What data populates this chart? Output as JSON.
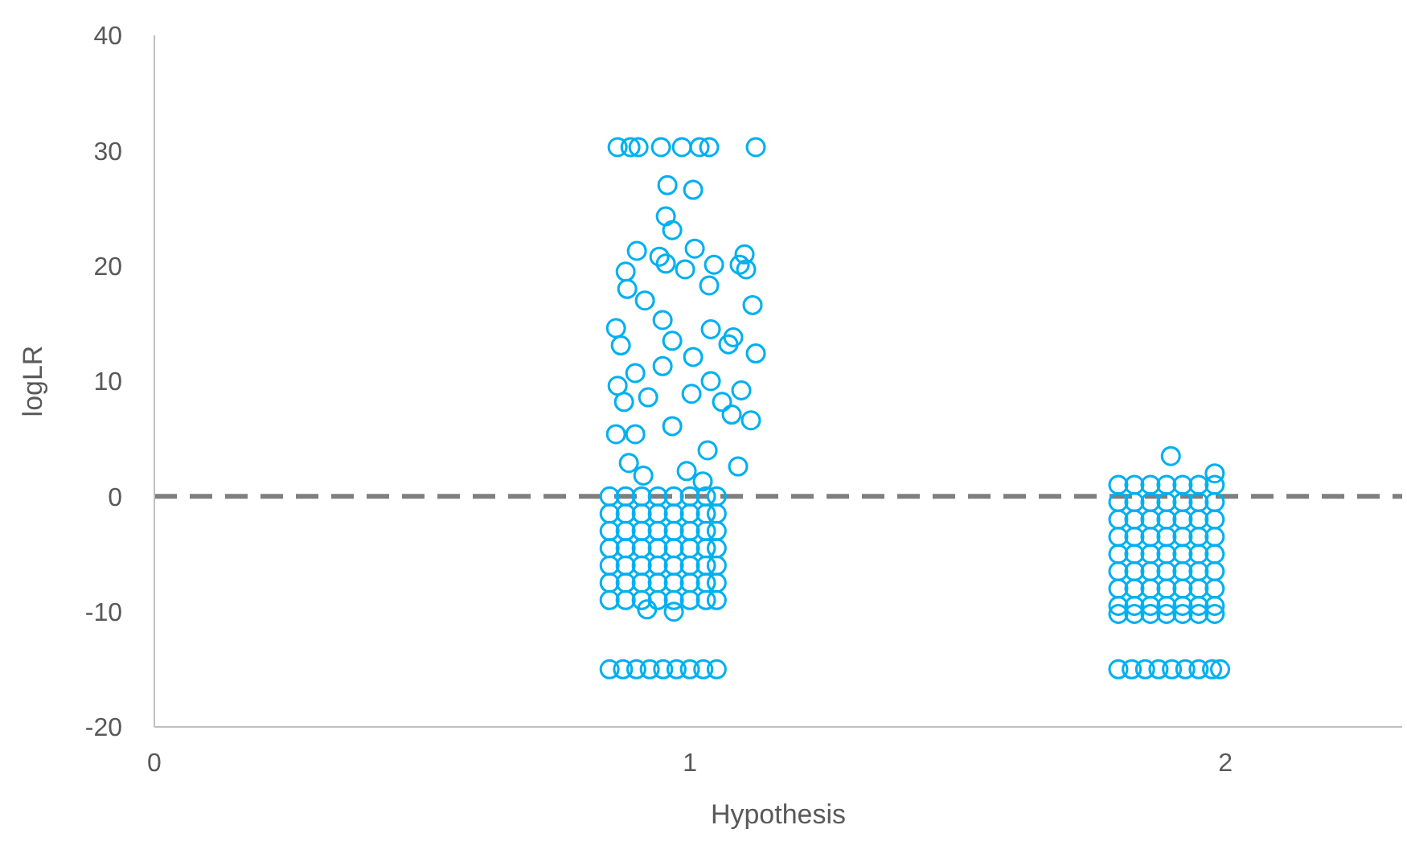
{
  "chart_data": {
    "type": "scatter",
    "xlabel": "Hypothesis",
    "ylabel": "logLR",
    "xlim": [
      0,
      2.33
    ],
    "xticks": [
      0,
      1,
      2
    ],
    "ylim": [
      -20,
      40
    ],
    "yticks": [
      -20,
      -10,
      0,
      10,
      20,
      30,
      40
    ],
    "grid": false,
    "legend": false,
    "marker": "circle",
    "color": "#00b0f0",
    "ref_lines": [
      {
        "axis": "y",
        "value": 0,
        "color": "#7f7f7f",
        "line_style": "dashed"
      }
    ],
    "x": [
      0.865,
      0.889,
      0.904,
      0.946,
      0.985,
      1.018,
      1.036,
      1.123,
      0.958,
      1.006,
      0.955,
      0.967,
      0.901,
      0.943,
      1.009,
      1.102,
      1.045,
      1.093,
      0.88,
      0.955,
      0.991,
      1.105,
      0.883,
      0.916,
      1.036,
      1.117,
      0.862,
      0.949,
      1.039,
      1.081,
      0.967,
      0.871,
      1.006,
      1.072,
      1.123,
      0.865,
      0.898,
      0.949,
      1.039,
      1.096,
      0.877,
      0.922,
      1.003,
      1.06,
      1.114,
      0.862,
      0.898,
      0.967,
      1.078,
      1.033,
      0.886,
      0.994,
      1.09,
      0.913,
      1.024,
      0.85,
      0.88,
      0.91,
      0.94,
      0.97,
      1.0,
      1.03,
      1.05,
      0.85,
      0.88,
      0.91,
      0.94,
      0.97,
      1.0,
      1.03,
      1.05,
      0.85,
      0.88,
      0.91,
      0.94,
      0.97,
      1.0,
      1.03,
      1.05,
      0.85,
      0.88,
      0.91,
      0.94,
      0.97,
      1.0,
      1.03,
      1.05,
      0.85,
      0.88,
      0.91,
      0.94,
      0.97,
      1.0,
      1.03,
      1.05,
      0.85,
      0.88,
      0.91,
      0.94,
      0.97,
      1.0,
      1.03,
      1.05,
      0.85,
      0.88,
      0.91,
      0.94,
      0.97,
      1.0,
      1.03,
      1.05,
      0.97,
      0.92,
      0.85,
      0.875,
      0.9,
      0.925,
      0.95,
      0.975,
      1.0,
      1.025,
      1.05,
      1.898,
      1.98,
      1.8,
      1.83,
      1.86,
      1.89,
      1.92,
      1.95,
      1.98,
      1.8,
      1.83,
      1.86,
      1.89,
      1.92,
      1.95,
      1.98,
      1.8,
      1.83,
      1.86,
      1.89,
      1.92,
      1.95,
      1.98,
      1.8,
      1.83,
      1.86,
      1.89,
      1.92,
      1.95,
      1.98,
      1.8,
      1.83,
      1.86,
      1.89,
      1.92,
      1.95,
      1.98,
      1.8,
      1.83,
      1.86,
      1.89,
      1.92,
      1.95,
      1.98,
      1.8,
      1.83,
      1.86,
      1.89,
      1.92,
      1.95,
      1.98,
      1.8,
      1.83,
      1.86,
      1.89,
      1.92,
      1.95,
      1.98,
      1.8,
      1.83,
      1.86,
      1.89,
      1.92,
      1.95,
      1.98,
      1.8,
      1.825,
      1.85,
      1.875,
      1.9,
      1.925,
      1.95,
      1.975,
      1.99
    ],
    "values": [
      30.3,
      30.3,
      30.3,
      30.3,
      30.3,
      30.3,
      30.3,
      30.3,
      27.0,
      26.6,
      24.3,
      23.1,
      21.3,
      20.8,
      21.5,
      21.0,
      20.1,
      20.1,
      19.5,
      20.2,
      19.7,
      19.7,
      18.0,
      17.0,
      18.3,
      16.6,
      14.6,
      15.3,
      14.5,
      13.8,
      13.5,
      13.1,
      12.1,
      13.2,
      12.4,
      9.6,
      10.7,
      11.3,
      10.0,
      9.2,
      8.2,
      8.6,
      8.9,
      8.2,
      6.6,
      5.4,
      5.4,
      6.1,
      7.1,
      4.0,
      2.9,
      2.2,
      2.6,
      1.8,
      1.3,
      0,
      0,
      0,
      0,
      0,
      0,
      0,
      0,
      -1.5,
      -1.5,
      -1.5,
      -1.5,
      -1.5,
      -1.5,
      -1.5,
      -1.5,
      -3,
      -3,
      -3,
      -3,
      -3,
      -3,
      -3,
      -3,
      -4.5,
      -4.5,
      -4.5,
      -4.5,
      -4.5,
      -4.5,
      -4.5,
      -4.5,
      -6,
      -6,
      -6,
      -6,
      -6,
      -6,
      -6,
      -6,
      -7.5,
      -7.5,
      -7.5,
      -7.5,
      -7.5,
      -7.5,
      -7.5,
      -7.5,
      -9,
      -9,
      -9,
      -9,
      -9,
      -9,
      -9,
      -9,
      -10,
      -9.8,
      -15,
      -15,
      -15,
      -15,
      -15,
      -15,
      -15,
      -15,
      -15,
      3.5,
      2,
      1,
      1,
      1,
      1,
      1,
      1,
      1,
      -0.5,
      -0.5,
      -0.5,
      -0.5,
      -0.5,
      -0.5,
      -0.5,
      -2,
      -2,
      -2,
      -2,
      -2,
      -2,
      -2,
      -3.5,
      -3.5,
      -3.5,
      -3.5,
      -3.5,
      -3.5,
      -3.5,
      -5,
      -5,
      -5,
      -5,
      -5,
      -5,
      -5,
      -6.5,
      -6.5,
      -6.5,
      -6.5,
      -6.5,
      -6.5,
      -6.5,
      -8,
      -8,
      -8,
      -8,
      -8,
      -8,
      -8,
      -9.5,
      -9.5,
      -9.5,
      -9.5,
      -9.5,
      -9.5,
      -9.5,
      -10.2,
      -10.2,
      -10.2,
      -10.2,
      -10.2,
      -10.2,
      -10.2,
      -15,
      -15,
      -15,
      -15,
      -15,
      -15,
      -15,
      -15,
      -15
    ]
  }
}
